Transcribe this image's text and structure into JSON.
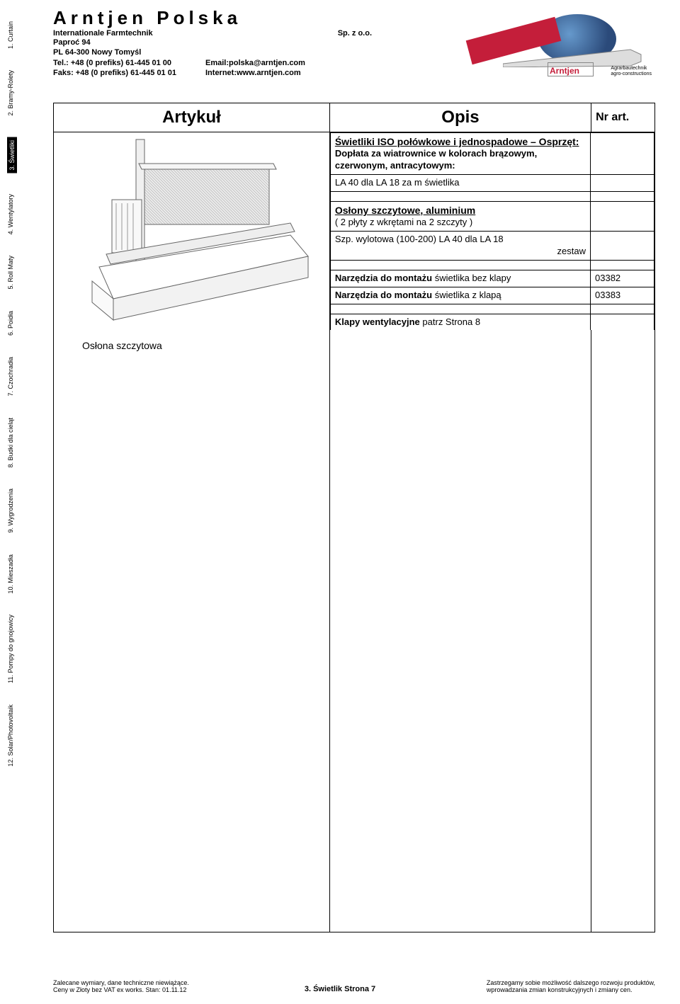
{
  "sidebar": {
    "items": [
      {
        "label": "1. Curtain",
        "highlighted": false
      },
      {
        "label": "2. Bramy-Rolety",
        "highlighted": false
      },
      {
        "label": "3. Świetliki",
        "highlighted": true
      },
      {
        "label": "4. Wentylatory",
        "highlighted": false
      },
      {
        "label": "5. Roll Maty",
        "highlighted": false
      },
      {
        "label": "6. Poidła",
        "highlighted": false
      },
      {
        "label": "7. Czochradła",
        "highlighted": false
      },
      {
        "label": "8. Budki dla cieląt",
        "highlighted": false
      },
      {
        "label": "9. Wygrodzenia",
        "highlighted": false
      },
      {
        "label": "10. Mieszadła",
        "highlighted": false
      },
      {
        "label": "11. Pompy do gnojowicy",
        "highlighted": false
      },
      {
        "label": "12. Solar/Photovoltaik",
        "highlighted": false
      }
    ]
  },
  "header": {
    "company": "Arntjen Polska",
    "subtitle": "Internationale Farmtechnik",
    "spzoo": "Sp. z o.o.",
    "addr1": "Paproć 94",
    "addr2": "PL 64-300 Nowy Tomyśl",
    "tel": "Tel.: +48 (0 prefiks) 61-445 01 00",
    "fax": "Faks: +48 (0 prefiks) 61-445 01 01",
    "email": "Email:polska@arntjen.com",
    "web": "Internet:www.arntjen.com"
  },
  "logo": {
    "brand": "Arntjen",
    "sub1": "Agrarbautechnik",
    "sub2": "agro-constructions"
  },
  "table": {
    "head_artykul": "Artykuł",
    "head_opis": "Opis",
    "head_nr": "Nr art.",
    "section1_title": "Świetliki ISO połówkowe i jednospadowe – Osprzęt:",
    "section1_sub": "Dopłata za wiatrownice w kolorach brązowym, czerwonym, antracytowym:",
    "section1_row1": "LA 40 dla LA 18   za m świetlika",
    "section2_title": "Osłony szczytowe, aluminium",
    "section2_sub": "( 2 płyty z wkrętami na 2 szczyty )",
    "section2_row1": "Szp. wylotowa (100-200)  LA 40 dla LA 18",
    "section2_row1_right": "zestaw",
    "row_narz1": "Narzędzia do montażu świetlika bez klapy",
    "row_narz1_nr": "03382",
    "row_narz2": "Narzędzia do montażu świetlika z klapą",
    "row_narz2_nr": "03383",
    "klapy": "Klapy wentylacyjne patrz Strona 8",
    "illust_label": "Osłona szczytowa"
  },
  "footer": {
    "left1": "Zalecane wymiary, dane techniczne niewiążące.",
    "left2": "Ceny w Złoty bez VAT ex works. Stan: 01.11.12",
    "right1": "Zastrzegamy sobie możliwość dalszego rozwoju produktów,",
    "right2": "wprowadzania zmian konstrukcyjnych i zmiany cen.",
    "center": "3. Świetlik Strona 7"
  },
  "colors": {
    "highlight_bg": "#000000",
    "highlight_fg": "#ffffff",
    "red": "#c41e3a",
    "globe1": "#6699cc",
    "globe2": "#2b4a7a"
  }
}
